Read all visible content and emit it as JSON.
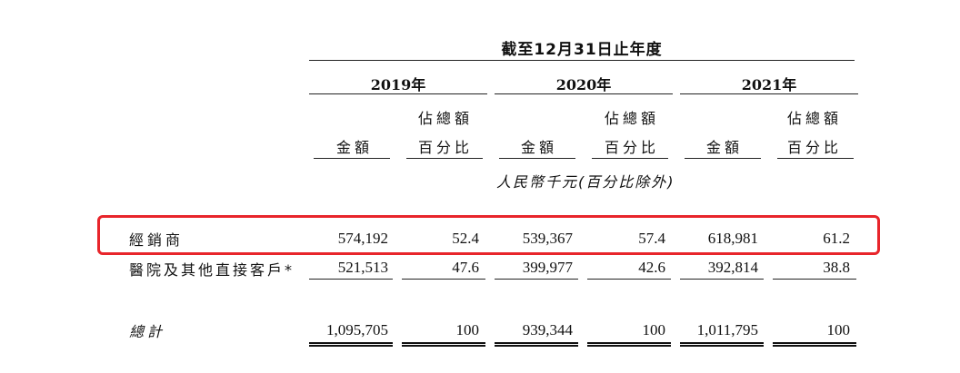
{
  "header": {
    "period": "截至12月31日止年度",
    "years": [
      "2019年",
      "2020年",
      "2021年"
    ],
    "col_amount": "金額",
    "col_pct_line1": "佔總額",
    "col_pct_line2": "百分比",
    "unit_note": "人民幣千元(百分比除外)"
  },
  "rows": [
    {
      "label": "經銷商",
      "values": [
        "574,192",
        "52.4",
        "539,367",
        "57.4",
        "618,981",
        "61.2"
      ],
      "highlighted": true
    },
    {
      "label": "醫院及其他直接客戶*",
      "values": [
        "521,513",
        "47.6",
        "399,977",
        "42.6",
        "392,814",
        "38.8"
      ],
      "highlighted": false
    }
  ],
  "total": {
    "label": "總計",
    "values": [
      "1,095,705",
      "100",
      "939,344",
      "100",
      "1,011,795",
      "100"
    ]
  },
  "highlight_color": "#e8252b"
}
